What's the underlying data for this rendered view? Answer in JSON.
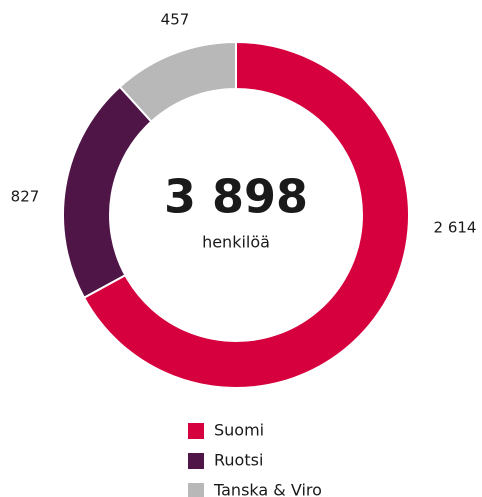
{
  "chart_data": {
    "type": "donut",
    "categories": [
      "Suomi",
      "Ruotsi",
      "Tanska & Viro"
    ],
    "values": [
      2614,
      827,
      457
    ],
    "value_labels": [
      "2 614",
      "827",
      "457"
    ],
    "colors": [
      "#d6003f",
      "#4f1547",
      "#b8b8b8"
    ],
    "center_label": "3 898",
    "center_sublabel": "henkilöä",
    "legend": "bottom"
  }
}
